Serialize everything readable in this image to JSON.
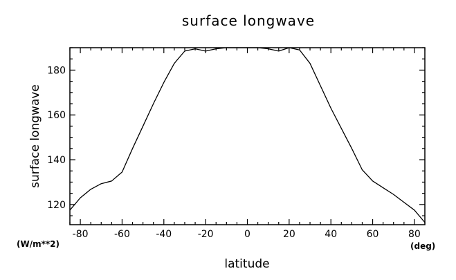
{
  "chart_data": {
    "type": "line",
    "title": "surface longwave",
    "xlabel": "latitude",
    "ylabel": "surface longwave",
    "x_unit": "(deg)",
    "y_unit": "(W/m**2)",
    "xlim": [
      -85,
      85
    ],
    "ylim": [
      111,
      190
    ],
    "x_ticks": [
      -80,
      -60,
      -40,
      -20,
      0,
      20,
      40,
      60,
      80
    ],
    "y_ticks": [
      120,
      140,
      160,
      180
    ],
    "grid": false,
    "series": [
      {
        "x": [
          -85,
          -80,
          -75,
          -70,
          -65,
          -60,
          -55,
          -50,
          -45,
          -40,
          -35,
          -30,
          -25,
          -20,
          -15,
          -10,
          -5,
          0,
          5,
          10,
          15,
          20,
          25,
          30,
          35,
          40,
          45,
          50,
          55,
          60,
          65,
          70,
          75,
          80,
          85
        ],
        "values": [
          117.5,
          123,
          126.8,
          129.3,
          130.5,
          134.5,
          145,
          155,
          165,
          174.5,
          183,
          188.5,
          189.5,
          188.5,
          189.5,
          190,
          190,
          190,
          190,
          189.5,
          188.5,
          190,
          189,
          183,
          173,
          163,
          154,
          145,
          135.5,
          130.5,
          127.5,
          124.5,
          121,
          117.5,
          112
        ]
      }
    ]
  }
}
